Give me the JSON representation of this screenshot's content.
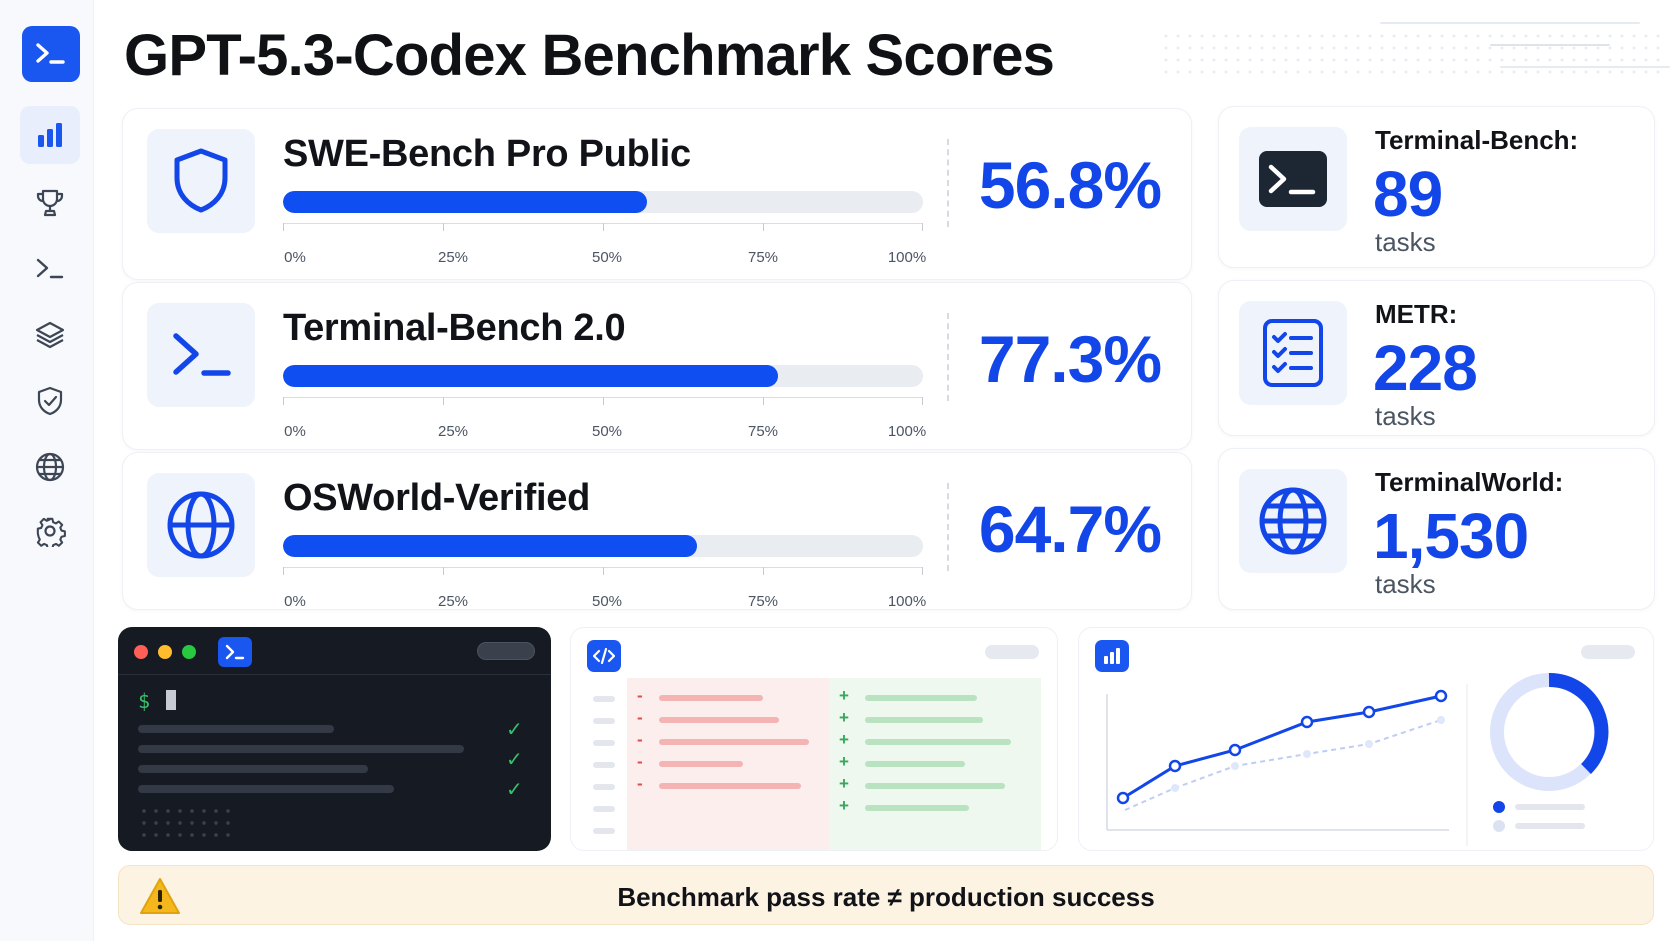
{
  "title": "GPT-5.3-Codex Benchmark Scores",
  "sidebar": {
    "items": [
      {
        "icon": "bar-chart-icon",
        "active": true
      },
      {
        "icon": "trophy-icon",
        "active": false
      },
      {
        "icon": "terminal-icon",
        "active": false
      },
      {
        "icon": "layers-icon",
        "active": false
      },
      {
        "icon": "shield-check-icon",
        "active": false
      },
      {
        "icon": "globe-icon",
        "active": false
      },
      {
        "icon": "gear-icon",
        "active": false
      }
    ]
  },
  "axis_ticks": [
    "0%",
    "25%",
    "50%",
    "75%",
    "100%"
  ],
  "benchmarks": [
    {
      "name": "SWE-Bench Pro Public",
      "score": "56.8%",
      "value": 56.8,
      "icon": "shield-icon"
    },
    {
      "name": "Terminal-Bench 2.0",
      "score": "77.3%",
      "value": 77.3,
      "icon": "terminal-icon"
    },
    {
      "name": "OSWorld-Verified",
      "score": "64.7%",
      "value": 64.7,
      "icon": "globe-icon"
    }
  ],
  "stats": [
    {
      "label": "Terminal-Bench:",
      "value": "89",
      "unit": "tasks",
      "icon": "terminal-icon"
    },
    {
      "label": "METR:",
      "value": "228",
      "unit": "tasks",
      "icon": "checklist-icon"
    },
    {
      "label": "TerminalWorld:",
      "value": "1,530",
      "unit": "tasks",
      "icon": "globe-icon"
    }
  ],
  "terminal": {
    "prompt": "$"
  },
  "diff": {
    "minus": "-",
    "plus": "+"
  },
  "warning": {
    "text": "Benchmark pass rate  ≠  production success"
  },
  "colors": {
    "accent": "#1246e8",
    "fill": "#0f4ef0",
    "track": "#e9ecf1",
    "warning_bg": "#fdf3e3"
  }
}
